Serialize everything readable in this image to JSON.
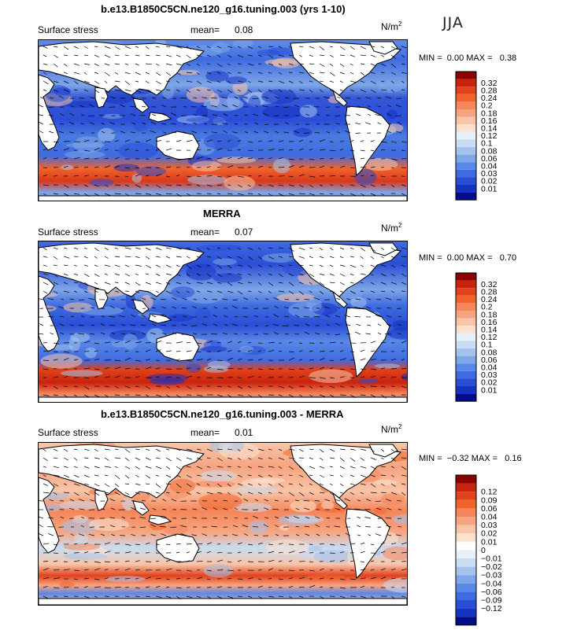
{
  "season": "JJA",
  "unit_base": "N/m",
  "unit_exp": "2",
  "panels": [
    {
      "title": "b.e13.B1850C5CN.ne120_g16.tuning.003 (yrs 1-10)",
      "variable": "Surface stress",
      "mean_label": "mean=",
      "mean_value": "0.08",
      "min_label": "MIN =",
      "min_value": "0.00",
      "max_label": "MAX =",
      "max_value": "0.38",
      "colorbar": {
        "colors": [
          "#8b0000",
          "#c8230e",
          "#e0421b",
          "#f0642c",
          "#f5855a",
          "#f7a581",
          "#f9c4a8",
          "#fde1cf",
          "#e8f1fa",
          "#c8dcf2",
          "#a3c3ec",
          "#7ea6e8",
          "#5a88e6",
          "#3f6be0",
          "#2a4ed6",
          "#1633c4",
          "#000d8a"
        ],
        "labels": [
          "0.32",
          "0.28",
          "0.24",
          "0.2",
          "0.18",
          "0.16",
          "0.14",
          "0.12",
          "0.1",
          "0.08",
          "0.06",
          "0.04",
          "0.03",
          "0.02",
          "0.01"
        ]
      }
    },
    {
      "title": "MERRA",
      "variable": "Surface stress",
      "mean_label": "mean=",
      "mean_value": "0.07",
      "min_label": "MIN =",
      "min_value": "0.00",
      "max_label": "MAX =",
      "max_value": "0.70",
      "colorbar": {
        "colors": [
          "#8b0000",
          "#c8230e",
          "#e0421b",
          "#f0642c",
          "#f5855a",
          "#f7a581",
          "#f9c4a8",
          "#fde1cf",
          "#e8f1fa",
          "#c8dcf2",
          "#a3c3ec",
          "#7ea6e8",
          "#5a88e6",
          "#3f6be0",
          "#2a4ed6",
          "#1633c4",
          "#000d8a"
        ],
        "labels": [
          "0.32",
          "0.28",
          "0.24",
          "0.2",
          "0.18",
          "0.16",
          "0.14",
          "0.12",
          "0.1",
          "0.08",
          "0.06",
          "0.04",
          "0.03",
          "0.02",
          "0.01"
        ]
      }
    },
    {
      "title": "b.e13.B1850C5CN.ne120_g16.tuning.003 - MERRA",
      "variable": "Surface stress",
      "mean_label": "mean=",
      "mean_value": "0.01",
      "min_label": "MIN =",
      "min_value": "−0.32",
      "max_label": "MAX =",
      "max_value": "0.16",
      "colorbar": {
        "colors": [
          "#8b0000",
          "#c8230e",
          "#e0421b",
          "#f0642c",
          "#f5855a",
          "#f7a581",
          "#f9c4a8",
          "#fde1cf",
          "#ffffff",
          "#e8f1fa",
          "#c8dcf2",
          "#a3c3ec",
          "#7ea6e8",
          "#5a88e6",
          "#3f6be0",
          "#2a4ed6",
          "#1633c4",
          "#000d8a"
        ],
        "labels": [
          "0.12",
          "0.09",
          "0.06",
          "0.04",
          "0.03",
          "0.02",
          "0.01",
          "0",
          "−0.01",
          "−0.02",
          "−0.03",
          "−0.04",
          "−0.06",
          "−0.09",
          "−0.12"
        ]
      }
    }
  ]
}
